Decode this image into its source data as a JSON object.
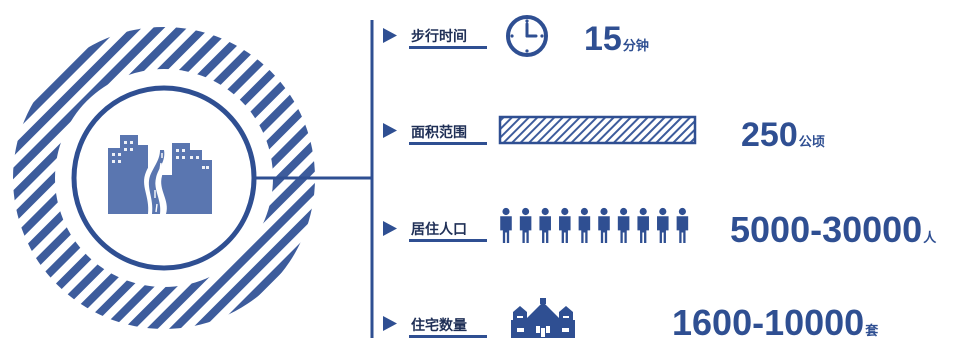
{
  "colors": {
    "primary": "#2f4f92",
    "stripe": "#3d5c9c",
    "text_dark": "#1f2f56"
  },
  "hub": {
    "icon": "city-road-icon"
  },
  "items": [
    {
      "label": "步行时间",
      "icon": "clock-icon",
      "value": "15",
      "unit": "分钟"
    },
    {
      "label": "面积范围",
      "icon": "area-bar-icon",
      "value": "250",
      "unit": "公顷"
    },
    {
      "label": "居住人口",
      "icon": "people-icon",
      "value": "5000-30000",
      "unit": "人"
    },
    {
      "label": "住宅数量",
      "icon": "houses-icon",
      "value": "1600-10000",
      "unit": "套"
    }
  ]
}
